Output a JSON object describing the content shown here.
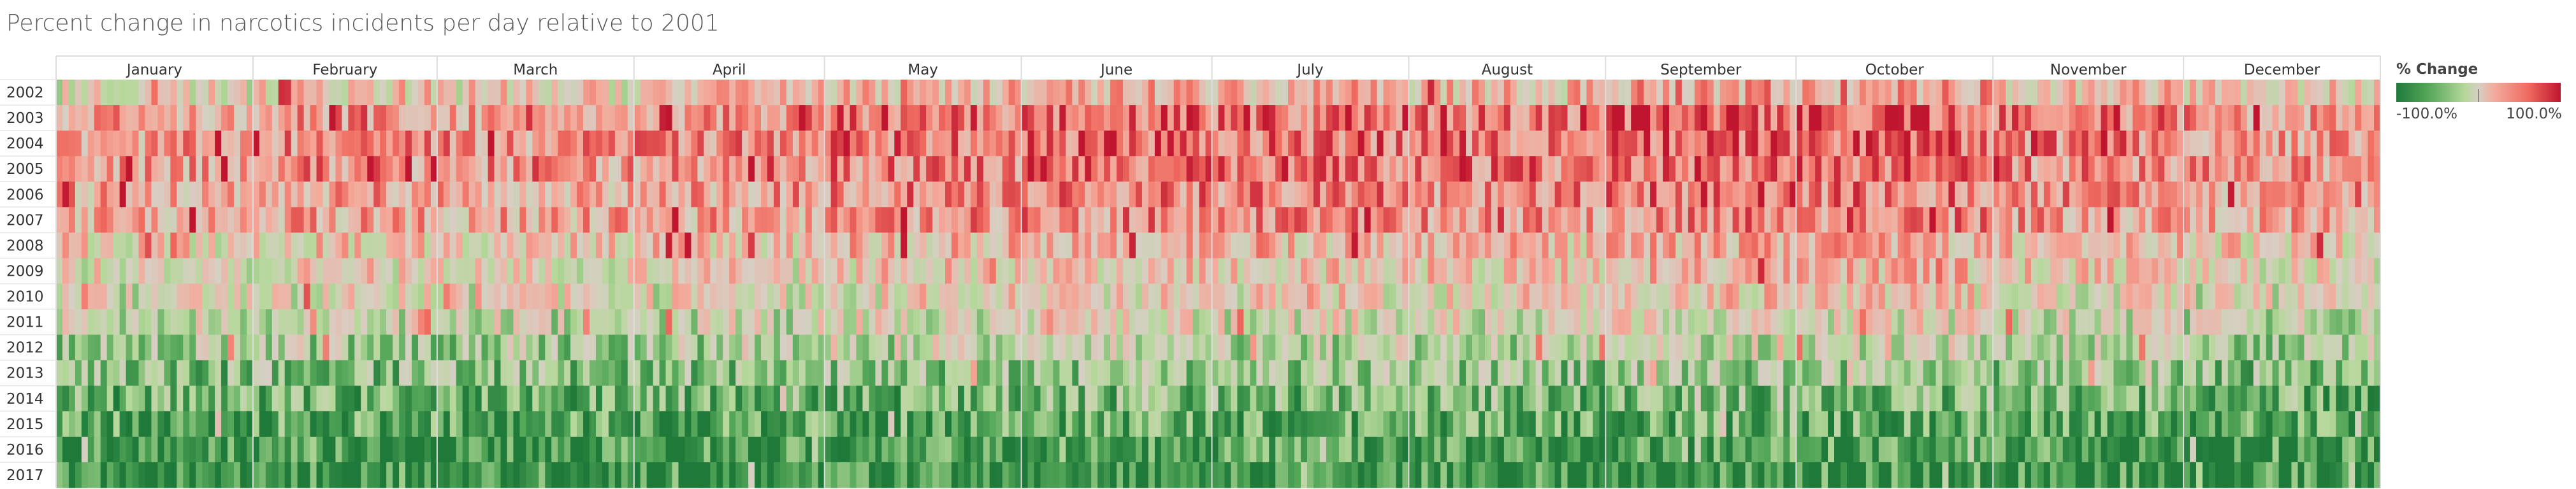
{
  "title": "Percent change in narcotics incidents per day relative to 2001",
  "legend": {
    "title": "% Change",
    "min_label": "-100.0%",
    "max_label": "100.0%",
    "colors": [
      "#1f7a3a",
      "#56a85a",
      "#b6d89b",
      "#d7cfc4",
      "#f3aa9b",
      "#ef6b60",
      "#c0152f"
    ]
  },
  "chart_data": {
    "type": "heatmap",
    "title": "Percent change in narcotics incidents per day relative to 2001",
    "x": {
      "months": [
        "January",
        "February",
        "March",
        "April",
        "May",
        "June",
        "July",
        "August",
        "September",
        "October",
        "November",
        "December"
      ],
      "days_in_month": [
        31,
        29,
        31,
        30,
        31,
        30,
        31,
        31,
        30,
        31,
        30,
        31
      ]
    },
    "y": {
      "years": [
        "2002",
        "2003",
        "2004",
        "2005",
        "2006",
        "2007",
        "2008",
        "2009",
        "2010",
        "2011",
        "2012",
        "2013",
        "2014",
        "2015",
        "2016",
        "2017"
      ]
    },
    "value_range": [
      -100,
      100
    ],
    "value_unit": "%",
    "year_baseline": [
      10,
      45,
      45,
      42,
      35,
      32,
      12,
      2,
      -5,
      -15,
      -30,
      -45,
      -60,
      -72,
      -82,
      -85
    ],
    "month_adjust": [
      -10,
      0,
      -5,
      0,
      15,
      20,
      15,
      10,
      25,
      25,
      5,
      -5
    ]
  }
}
